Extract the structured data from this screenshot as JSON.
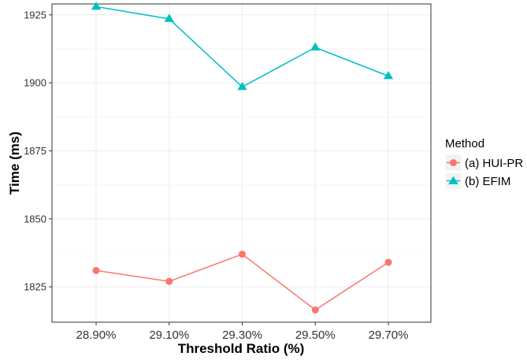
{
  "chart_data": {
    "type": "line",
    "xlabel": "Threshold Ratio (%)",
    "ylabel": "Time (ms)",
    "categories": [
      "28.90%",
      "29.10%",
      "29.30%",
      "29.50%",
      "29.70%"
    ],
    "ylim": [
      1812,
      1929
    ],
    "yticks": [
      1825,
      1850,
      1875,
      1900,
      1925
    ],
    "grid": true,
    "legend": {
      "title": "Method",
      "placement": "right"
    },
    "series": [
      {
        "name": "(a) HUI-PR",
        "marker": "circle",
        "color": "#F8766D",
        "values": [
          1831,
          1827,
          1837,
          1816.5,
          1834
        ]
      },
      {
        "name": "(b) EFIM",
        "marker": "triangle",
        "color": "#00BFC4",
        "values": [
          1928,
          1923.5,
          1898.5,
          1913,
          1902.5
        ]
      }
    ]
  }
}
